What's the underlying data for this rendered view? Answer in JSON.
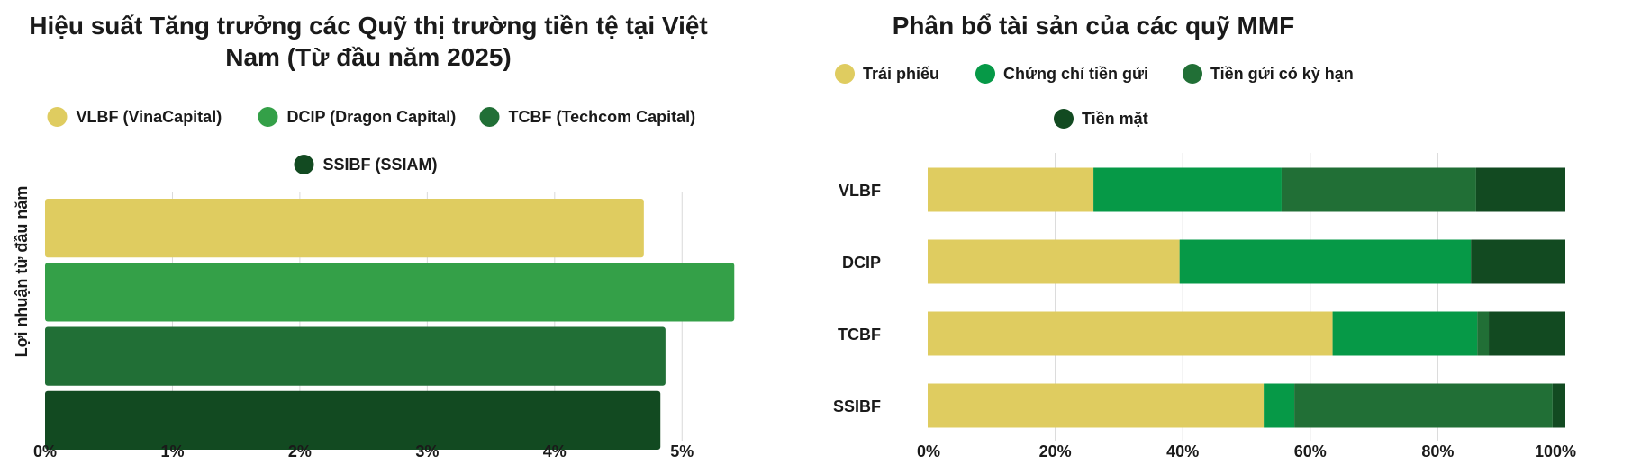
{
  "charts": [
    {
      "type": "bar",
      "orientation": "horizontal",
      "title_lines": [
        "Hiệu suất Tăng trưởng các Quỹ thị trường tiền tệ tại Việt",
        "Nam (Từ đầu năm 2025)"
      ],
      "ylabel": "Lợi nhuận từ đầu năm",
      "x_ticks": [
        "0%",
        "1%",
        "2%",
        "3%",
        "4%",
        "5%"
      ],
      "xlim": [
        0,
        5.5
      ],
      "grid": true,
      "legend_position": "top",
      "series": [
        {
          "name": "VLBF (VinaCapital)",
          "value": 4.7,
          "color": "#dfcc60"
        },
        {
          "name": "DCIP (Dragon Capital)",
          "value": 5.41,
          "color": "#34a048"
        },
        {
          "name": "TCBF (Techcom Capital)",
          "value": 4.87,
          "color": "#216f36"
        },
        {
          "name": "SSIBF (SSIAM)",
          "value": 4.83,
          "color": "#124a21"
        }
      ]
    },
    {
      "type": "bar",
      "orientation": "horizontal",
      "stacked": true,
      "title": "Phân bổ tài sản của các quỹ MMF",
      "categories": [
        "VLBF",
        "DCIP",
        "TCBF",
        "SSIBF"
      ],
      "x_ticks": [
        "0%",
        "20%",
        "40%",
        "60%",
        "80%",
        "100%"
      ],
      "xlim": [
        0,
        100
      ],
      "grid": true,
      "legend_position": "top",
      "series": [
        {
          "name": "Trái phiếu",
          "color": "#dfcc60",
          "values": [
            26,
            39.5,
            63.5,
            52.7
          ]
        },
        {
          "name": "Chứng chỉ tiền gửi",
          "color": "#069947",
          "values": [
            29.5,
            45.7,
            22.7,
            4.8
          ]
        },
        {
          "name": "Tiền gửi có kỳ hạn",
          "color": "#216f36",
          "values": [
            30.5,
            0,
            1.8,
            40.5
          ]
        },
        {
          "name": "Tiền mặt",
          "color": "#124a21",
          "values": [
            14,
            14.8,
            12,
            2
          ]
        }
      ]
    }
  ]
}
